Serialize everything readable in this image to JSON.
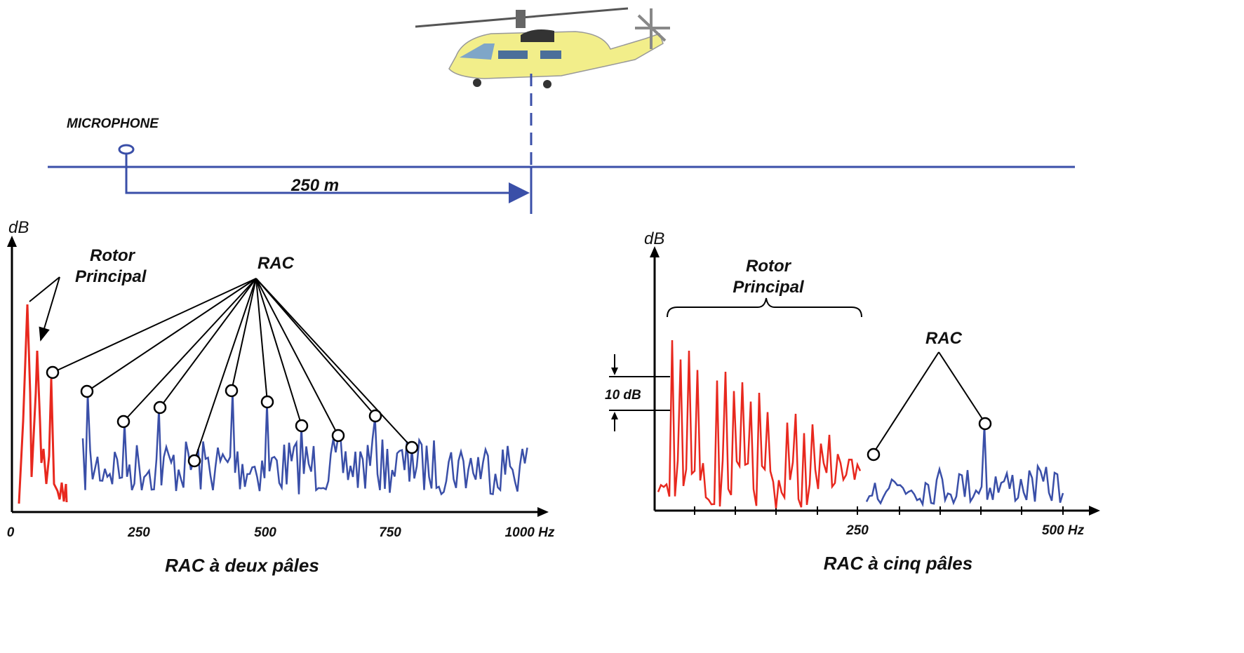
{
  "scene": {
    "microphone": "MICROPHONE",
    "distance": "250 m"
  },
  "left_spectrum": {
    "y_label": "dB",
    "rotor_label": [
      "Rotor",
      "Principal"
    ],
    "rac_label": "RAC",
    "x_ticks": [
      "0",
      "250",
      "500",
      "750",
      "1000 Hz"
    ],
    "caption": "RAC à deux pâles"
  },
  "right_spectrum": {
    "y_label": "dB",
    "rotor_label": [
      "Rotor",
      "Principal"
    ],
    "rac_label": "RAC",
    "scale_label": "10 dB",
    "x_ticks": [
      "250",
      "500 Hz"
    ],
    "caption": "RAC à cinq pâles"
  }
}
